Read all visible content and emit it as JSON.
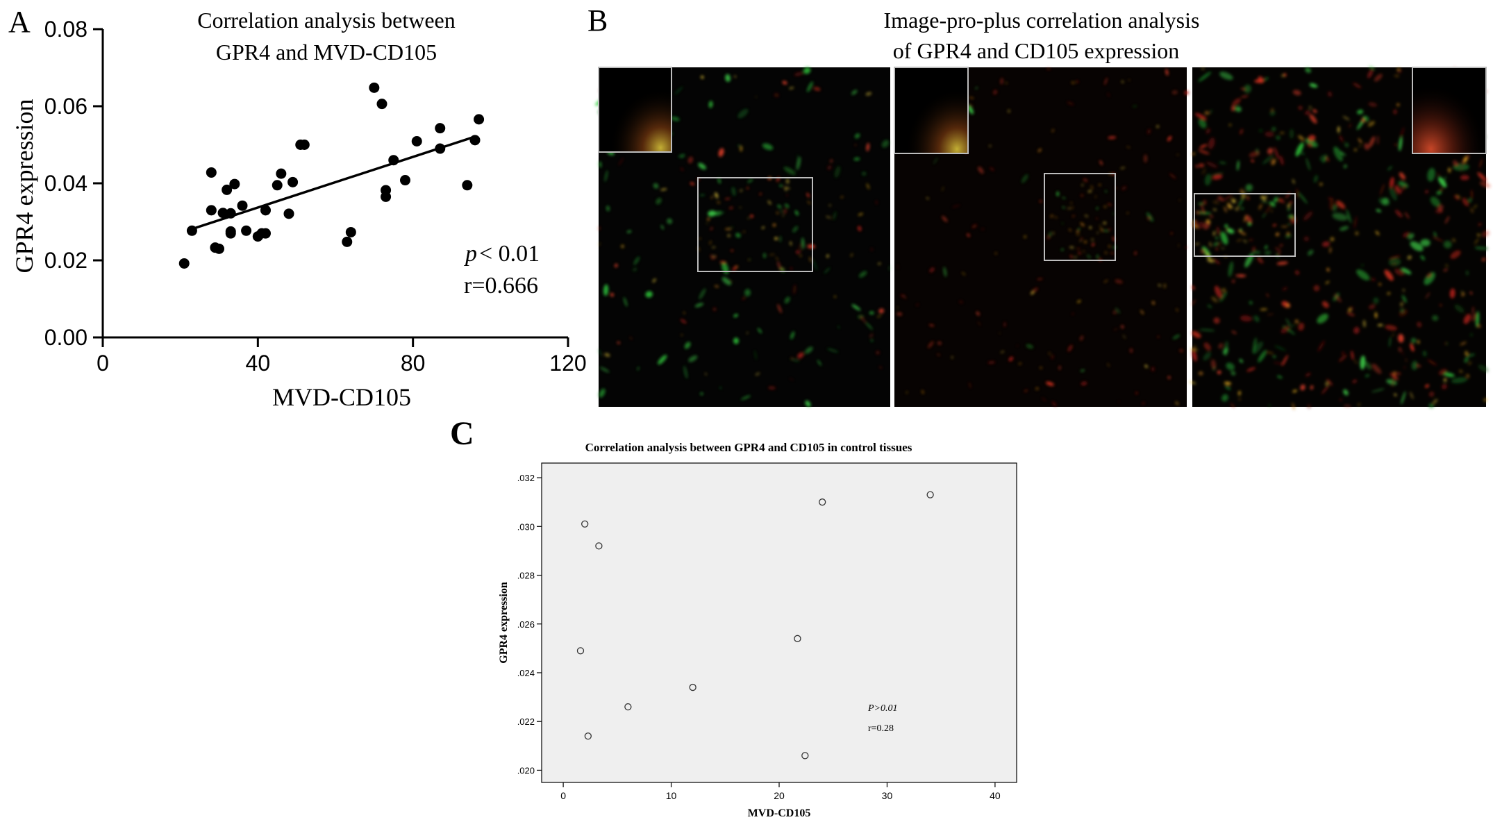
{
  "panels": {
    "a": {
      "letter": "A"
    },
    "b": {
      "letter": "B",
      "title": [
        "Image-pro-plus correlation analysis",
        "of GPR4 and CD105 expression"
      ]
    },
    "c": {
      "letter": "C"
    }
  },
  "chart_data": [
    {
      "id": "A",
      "type": "scatter",
      "title": [
        "Correlation analysis between",
        "GPR4 and MVD-CD105"
      ],
      "xlabel": "MVD-CD105",
      "ylabel": "GPR4 expression",
      "xlim": [
        0,
        120
      ],
      "ylim": [
        0,
        0.08
      ],
      "xticks": [
        0,
        40,
        80,
        120
      ],
      "xtick_labels": [
        "0",
        "40",
        "80",
        "120"
      ],
      "yticks": [
        0,
        0.02,
        0.04,
        0.06,
        0.08
      ],
      "ytick_labels": [
        "0.00",
        "0.02",
        "0.04",
        "0.06",
        "0.08"
      ],
      "grid": false,
      "fit_line": {
        "x": [
          22,
          96
        ],
        "y": [
          0.0278,
          0.0521
        ]
      },
      "annotations": {
        "p_symbol": "p",
        "p_text": "< 0.01",
        "r_text": "r=0.666"
      },
      "points": {
        "x": [
          21,
          23,
          28,
          28,
          29,
          30,
          31,
          32,
          33,
          33,
          33,
          34,
          36,
          37,
          40,
          41,
          42,
          42,
          45,
          46,
          48,
          49,
          51,
          52,
          63,
          64,
          70,
          72,
          73,
          73,
          75,
          78,
          81,
          87,
          87,
          94,
          96,
          97
        ],
        "y": [
          0.0192,
          0.0277,
          0.033,
          0.0428,
          0.0233,
          0.023,
          0.0323,
          0.0383,
          0.0275,
          0.0322,
          0.027,
          0.0398,
          0.0342,
          0.0277,
          0.0262,
          0.027,
          0.033,
          0.027,
          0.0395,
          0.0425,
          0.0321,
          0.0403,
          0.05,
          0.05,
          0.0248,
          0.0273,
          0.0648,
          0.0606,
          0.0365,
          0.0382,
          0.046,
          0.0408,
          0.0509,
          0.049,
          0.0543,
          0.0395,
          0.0512,
          0.0566
        ]
      }
    },
    {
      "id": "C",
      "type": "scatter",
      "title": "Correlation analysis between GPR4 and CD105 in control tissues",
      "xlabel": "MVD-CD105",
      "ylabel": "GPR4 expression",
      "xlim": [
        -2,
        42
      ],
      "ylim": [
        0.0195,
        0.0326
      ],
      "xticks": [
        0,
        10,
        20,
        30,
        40
      ],
      "xtick_labels": [
        "0",
        "10",
        "20",
        "30",
        "40"
      ],
      "yticks": [
        0.02,
        0.022,
        0.024,
        0.026,
        0.028,
        0.03,
        0.032
      ],
      "ytick_labels": [
        ".020",
        ".022",
        ".024",
        ".026",
        ".028",
        ".030",
        ".032"
      ],
      "grid": false,
      "background": "#efefef",
      "annotations": {
        "p_text": "P>0.01",
        "r_text": "r=0.28"
      },
      "points": {
        "x": [
          2.0,
          3.3,
          1.6,
          2.3,
          6.0,
          12.0,
          21.7,
          22.4,
          24.0,
          34.0
        ],
        "y": [
          0.0301,
          0.0292,
          0.0249,
          0.0214,
          0.0226,
          0.0234,
          0.0254,
          0.0206,
          0.031,
          0.0313
        ]
      }
    }
  ],
  "colors": {
    "axis": "#000000",
    "markerA": "#000000",
    "plotBgC": "#efefef",
    "micrograph": "#050505",
    "roi_box": "#bdbdbd"
  }
}
